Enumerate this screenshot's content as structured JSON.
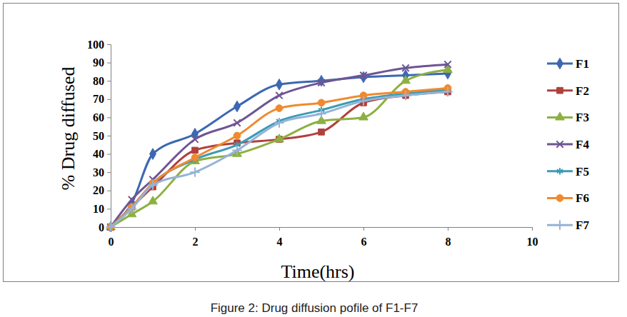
{
  "chart_data": {
    "type": "line",
    "title": "Figure 2: Drug diffusion pofile of F1-F7",
    "x_label": "Time(hrs)",
    "y_label": "% Drug diffused",
    "x": [
      0,
      0.5,
      1,
      2,
      3,
      4,
      5,
      6,
      7,
      8
    ],
    "xlim": [
      0,
      10
    ],
    "xticks": [
      0,
      2,
      4,
      6,
      8,
      10
    ],
    "ylim": [
      0,
      100
    ],
    "yticks": [
      0,
      10,
      20,
      30,
      40,
      50,
      60,
      70,
      80,
      90,
      100
    ],
    "grid": false,
    "legend": "right",
    "series": [
      {
        "name": "F1",
        "color": "#3c68b1",
        "marker": "diamond",
        "values": [
          0,
          13,
          40,
          51,
          66,
          78,
          80,
          82,
          83,
          84
        ]
      },
      {
        "name": "F2",
        "color": "#b0403d",
        "marker": "square",
        "values": [
          0,
          11,
          22,
          42,
          46,
          48,
          52,
          68,
          72,
          74
        ]
      },
      {
        "name": "F3",
        "color": "#8db041",
        "marker": "triangle",
        "values": [
          0,
          7,
          14,
          36,
          40,
          48,
          58,
          60,
          80,
          86
        ]
      },
      {
        "name": "F4",
        "color": "#6f5593",
        "marker": "x",
        "values": [
          0,
          15,
          26,
          48,
          57,
          72,
          79,
          83,
          87,
          89
        ]
      },
      {
        "name": "F5",
        "color": "#3b9cb5",
        "marker": "star",
        "values": [
          0,
          11,
          24,
          37,
          45,
          58,
          64,
          70,
          73,
          75
        ]
      },
      {
        "name": "F6",
        "color": "#f08a2f",
        "marker": "circle",
        "values": [
          0,
          11,
          24,
          38,
          50,
          65,
          68,
          72,
          74,
          76
        ]
      },
      {
        "name": "F7",
        "color": "#95b3d7",
        "marker": "plus",
        "values": [
          0,
          10,
          23,
          30,
          42,
          57,
          62,
          69,
          72,
          74
        ]
      }
    ]
  }
}
